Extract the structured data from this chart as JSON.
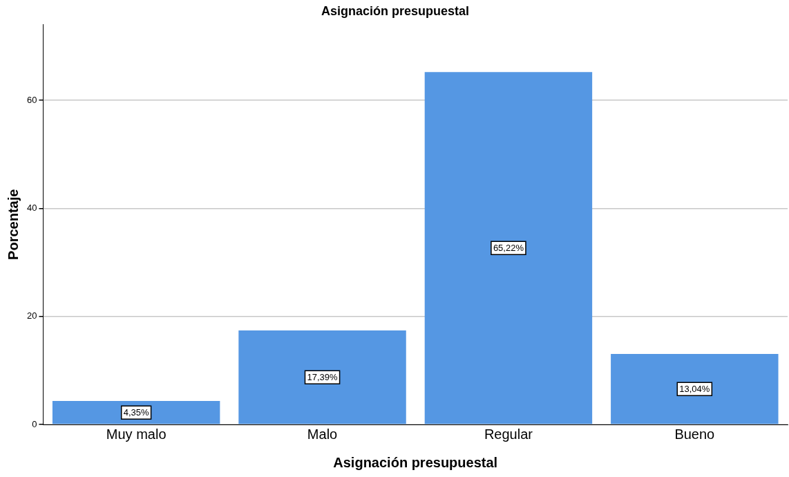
{
  "chart_data": {
    "type": "bar",
    "title": "Asignación presupuestal",
    "xlabel": "Asignación presupuestal",
    "ylabel": "Porcentaje",
    "categories": [
      "Muy malo",
      "Malo",
      "Regular",
      "Bueno"
    ],
    "values": [
      4.35,
      17.39,
      65.22,
      13.04
    ],
    "value_labels": [
      "4,35%",
      "17,39%",
      "65,22%",
      "13,04%"
    ],
    "color": "#5597e3",
    "ylim": [
      0,
      74
    ],
    "yticks": [
      0,
      20,
      40,
      60
    ],
    "grid": "y",
    "legend": false
  }
}
